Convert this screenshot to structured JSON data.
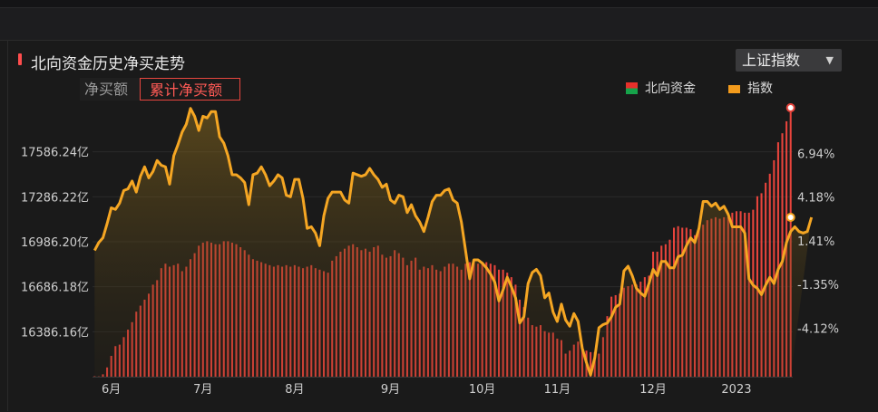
{
  "header": {
    "title": "北向资金历史净买走势"
  },
  "index_select": {
    "value": "上证指数"
  },
  "tabs": [
    {
      "label": "净买额"
    },
    {
      "label": "累计净买额"
    }
  ],
  "legend": [
    {
      "label": "北向资金",
      "colors": [
        "#e6302b",
        "#16a34a"
      ]
    },
    {
      "label": "指数",
      "color": "#f39b1c"
    }
  ],
  "colors": {
    "bar": "#e8443c",
    "line": "#f5a623",
    "grid": "#2a2a2a"
  },
  "chart_data": {
    "type": "bar+line",
    "title": "北向资金历史净买走势",
    "left_axis": {
      "ticks": [
        "17586.24亿",
        "17286.22亿",
        "16986.20亿",
        "16686.18亿",
        "16386.16亿"
      ],
      "values": [
        17586.24,
        17286.22,
        16986.2,
        16686.18,
        16386.16
      ],
      "ylim": [
        16086.14,
        17886.26
      ]
    },
    "right_axis": {
      "ticks": [
        "6.94%",
        "4.18%",
        "1.41%",
        "-1.35%",
        "-4.12%"
      ],
      "values": [
        6.94,
        4.18,
        1.41,
        -1.35,
        -4.12
      ],
      "ylim": [
        -7.2,
        9.9
      ]
    },
    "x_ticks": [
      {
        "label": "6月",
        "index": 4
      },
      {
        "label": "7月",
        "index": 26
      },
      {
        "label": "8月",
        "index": 48
      },
      {
        "label": "9月",
        "index": 71
      },
      {
        "label": "10月",
        "index": 93
      },
      {
        "label": "11月",
        "index": 111
      },
      {
        "label": "12月",
        "index": 134
      },
      {
        "label": "2023",
        "index": 154
      }
    ],
    "series": [
      {
        "name": "北向资金",
        "kind": "bar",
        "values": [
          16089,
          16088,
          16102,
          16148,
          16225,
          16290,
          16300,
          16350,
          16400,
          16450,
          16520,
          16560,
          16600,
          16640,
          16700,
          16730,
          16810,
          16840,
          16820,
          16830,
          16840,
          16790,
          16820,
          16870,
          16910,
          16960,
          16980,
          16990,
          16980,
          16970,
          16970,
          16990,
          16990,
          16980,
          16970,
          16950,
          16930,
          16900,
          16870,
          16860,
          16850,
          16840,
          16830,
          16820,
          16830,
          16820,
          16830,
          16820,
          16830,
          16820,
          16810,
          16820,
          16830,
          16810,
          16800,
          16790,
          16780,
          16860,
          16890,
          16920,
          16940,
          16960,
          16970,
          16950,
          16930,
          16940,
          16920,
          16950,
          16960,
          16900,
          16880,
          16890,
          16930,
          16910,
          16880,
          16830,
          16860,
          16880,
          16800,
          16820,
          16810,
          16830,
          16800,
          16790,
          16820,
          16840,
          16840,
          16820,
          16800,
          16840,
          16850,
          16850,
          16840,
          16850,
          16850,
          16840,
          16830,
          16800,
          16800,
          16780,
          16750,
          16700,
          16600,
          16550,
          16480,
          16430,
          16420,
          16430,
          16390,
          16380,
          16380,
          16340,
          16330,
          16240,
          16260,
          16300,
          16320,
          16300,
          16260,
          16250,
          16250,
          16240,
          16350,
          16490,
          16620,
          16630,
          16640,
          16680,
          16690,
          16700,
          16700,
          16720,
          16750,
          16760,
          16920,
          16920,
          16960,
          16970,
          17000,
          17080,
          17090,
          17080,
          17080,
          17070,
          17030,
          17080,
          17100,
          17130,
          17140,
          17150,
          17140,
          17150,
          17150,
          17180,
          17190,
          17190,
          17180,
          17180,
          17200,
          17290,
          17310,
          17380,
          17440,
          17530,
          17650,
          17710,
          17790,
          17880
        ]
      },
      {
        "name": "指数",
        "kind": "line",
        "values": [
          0.8,
          1.3,
          1.6,
          2.5,
          3.5,
          3.4,
          3.8,
          4.6,
          4.7,
          5.2,
          4.5,
          5.5,
          6.1,
          5.4,
          5.8,
          6.5,
          6.2,
          6.1,
          5.0,
          6.8,
          7.5,
          8.3,
          8.8,
          9.8,
          9.3,
          8.4,
          9.3,
          9.2,
          9.6,
          9.6,
          8.0,
          7.6,
          6.8,
          5.6,
          5.6,
          5.4,
          5.1,
          3.7,
          5.6,
          5.7,
          6.1,
          5.6,
          4.9,
          5.2,
          5.6,
          5.4,
          4.3,
          4.2,
          5.3,
          5.3,
          4.1,
          2.2,
          2.3,
          1.9,
          1.1,
          3.0,
          4.1,
          4.5,
          4.5,
          4.5,
          4.0,
          3.8,
          5.7,
          5.6,
          5.5,
          5.6,
          6.0,
          5.6,
          5.3,
          4.8,
          5.0,
          4.0,
          3.8,
          4.3,
          4.2,
          3.2,
          3.7,
          3.0,
          2.6,
          2.0,
          2.9,
          3.9,
          4.3,
          4.3,
          4.6,
          4.7,
          4.0,
          3.8,
          2.6,
          0.8,
          -1.0,
          0.2,
          0.2,
          0.0,
          -0.3,
          -0.7,
          -1.2,
          -2.4,
          -1.7,
          -0.9,
          -1.5,
          -2.2,
          -3.8,
          -3.4,
          -1.3,
          -0.6,
          -0.4,
          -0.8,
          -2.2,
          -1.9,
          -3.1,
          -3.7,
          -2.6,
          -3.6,
          -4.0,
          -3.2,
          -3.7,
          -5.4,
          -6.3,
          -7.1,
          -6.0,
          -4.1,
          -3.9,
          -3.8,
          -3.4,
          -2.8,
          -2.6,
          -0.5,
          -0.2,
          -0.8,
          -1.6,
          -1.9,
          -2.1,
          -1.3,
          -0.4,
          -0.8,
          0.1,
          0.1,
          -0.3,
          -0.3,
          0.4,
          0.5,
          1.1,
          1.6,
          1.3,
          2.2,
          3.9,
          3.9,
          3.6,
          3.8,
          3.4,
          3.6,
          3.1,
          2.3,
          2.3,
          2.3,
          1.9,
          -1.0,
          -1.4,
          -1.6,
          -2.0,
          -1.4,
          -0.9,
          -1.3,
          -0.4,
          0.1,
          1.3,
          2.0,
          2.3,
          2.0,
          1.9,
          2.0,
          2.9
        ]
      }
    ],
    "end_markers": {
      "bar_last": 17880,
      "line_last": 2.9
    },
    "legend": [
      "北向资金",
      "指数"
    ],
    "grid": true
  }
}
